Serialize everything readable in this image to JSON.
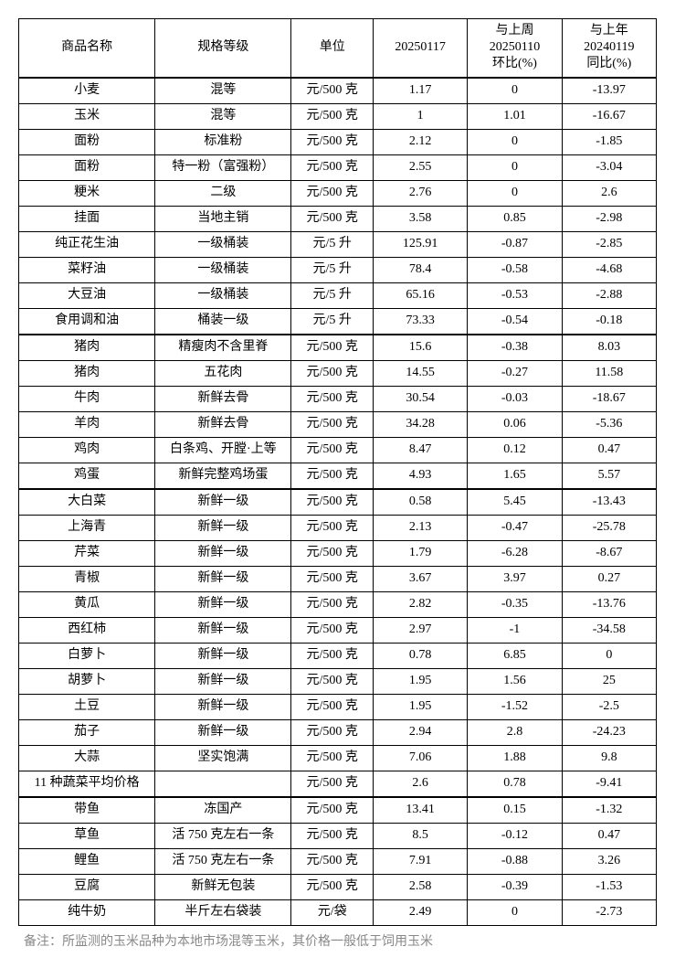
{
  "table": {
    "headers": {
      "name": "商品名称",
      "spec": "规格等级",
      "unit": "单位",
      "date": "20250117",
      "wow": "与上周\n20250110\n环比(%)",
      "yoy": "与上年\n20240119\n同比(%)"
    },
    "rows": [
      {
        "section": true,
        "name": "小麦",
        "spec": "混等",
        "unit": "元/500 克",
        "v1": "1.17",
        "v2": "0",
        "v3": "-13.97"
      },
      {
        "name": "玉米",
        "spec": "混等",
        "unit": "元/500 克",
        "v1": "1",
        "v2": "1.01",
        "v3": "-16.67"
      },
      {
        "name": "面粉",
        "spec": "标准粉",
        "unit": "元/500 克",
        "v1": "2.12",
        "v2": "0",
        "v3": "-1.85"
      },
      {
        "name": "面粉",
        "spec": "特一粉（富强粉）",
        "unit": "元/500 克",
        "v1": "2.55",
        "v2": "0",
        "v3": "-3.04"
      },
      {
        "name": "粳米",
        "spec": "二级",
        "unit": "元/500 克",
        "v1": "2.76",
        "v2": "0",
        "v3": "2.6"
      },
      {
        "name": "挂面",
        "spec": "当地主销",
        "unit": "元/500 克",
        "v1": "3.58",
        "v2": "0.85",
        "v3": "-2.98"
      },
      {
        "name": "纯正花生油",
        "spec": "一级桶装",
        "unit": "元/5 升",
        "v1": "125.91",
        "v2": "-0.87",
        "v3": "-2.85"
      },
      {
        "name": "菜籽油",
        "spec": "一级桶装",
        "unit": "元/5 升",
        "v1": "78.4",
        "v2": "-0.58",
        "v3": "-4.68"
      },
      {
        "name": "大豆油",
        "spec": "一级桶装",
        "unit": "元/5 升",
        "v1": "65.16",
        "v2": "-0.53",
        "v3": "-2.88"
      },
      {
        "name": "食用调和油",
        "spec": "桶装一级",
        "unit": "元/5 升",
        "v1": "73.33",
        "v2": "-0.54",
        "v3": "-0.18"
      },
      {
        "section": true,
        "name": "猪肉",
        "spec": "精瘦肉不含里脊",
        "unit": "元/500 克",
        "v1": "15.6",
        "v2": "-0.38",
        "v3": "8.03"
      },
      {
        "name": "猪肉",
        "spec": "五花肉",
        "unit": "元/500 克",
        "v1": "14.55",
        "v2": "-0.27",
        "v3": "11.58"
      },
      {
        "name": "牛肉",
        "spec": "新鲜去骨",
        "unit": "元/500 克",
        "v1": "30.54",
        "v2": "-0.03",
        "v3": "-18.67"
      },
      {
        "name": "羊肉",
        "spec": "新鲜去骨",
        "unit": "元/500 克",
        "v1": "34.28",
        "v2": "0.06",
        "v3": "-5.36"
      },
      {
        "name": "鸡肉",
        "spec": "白条鸡、开膛·上等",
        "unit": "元/500 克",
        "v1": "8.47",
        "v2": "0.12",
        "v3": "0.47"
      },
      {
        "name": "鸡蛋",
        "spec": "新鲜完整鸡场蛋",
        "unit": "元/500 克",
        "v1": "4.93",
        "v2": "1.65",
        "v3": "5.57"
      },
      {
        "section": true,
        "name": "大白菜",
        "spec": "新鲜一级",
        "unit": "元/500 克",
        "v1": "0.58",
        "v2": "5.45",
        "v3": "-13.43"
      },
      {
        "name": "上海青",
        "spec": "新鲜一级",
        "unit": "元/500 克",
        "v1": "2.13",
        "v2": "-0.47",
        "v3": "-25.78"
      },
      {
        "name": "芹菜",
        "spec": "新鲜一级",
        "unit": "元/500 克",
        "v1": "1.79",
        "v2": "-6.28",
        "v3": "-8.67"
      },
      {
        "name": "青椒",
        "spec": "新鲜一级",
        "unit": "元/500 克",
        "v1": "3.67",
        "v2": "3.97",
        "v3": "0.27"
      },
      {
        "name": "黄瓜",
        "spec": "新鲜一级",
        "unit": "元/500 克",
        "v1": "2.82",
        "v2": "-0.35",
        "v3": "-13.76"
      },
      {
        "name": "西红柿",
        "spec": "新鲜一级",
        "unit": "元/500 克",
        "v1": "2.97",
        "v2": "-1",
        "v3": "-34.58"
      },
      {
        "name": "白萝卜",
        "spec": "新鲜一级",
        "unit": "元/500 克",
        "v1": "0.78",
        "v2": "6.85",
        "v3": "0"
      },
      {
        "name": "胡萝卜",
        "spec": "新鲜一级",
        "unit": "元/500 克",
        "v1": "1.95",
        "v2": "1.56",
        "v3": "25"
      },
      {
        "name": "土豆",
        "spec": "新鲜一级",
        "unit": "元/500 克",
        "v1": "1.95",
        "v2": "-1.52",
        "v3": "-2.5"
      },
      {
        "name": "茄子",
        "spec": "新鲜一级",
        "unit": "元/500 克",
        "v1": "2.94",
        "v2": "2.8",
        "v3": "-24.23"
      },
      {
        "name": "大蒜",
        "spec": "坚实饱满",
        "unit": "元/500 克",
        "v1": "7.06",
        "v2": "1.88",
        "v3": "9.8"
      },
      {
        "name": "11 种蔬菜平均价格",
        "spec": "",
        "unit": "元/500 克",
        "v1": "2.6",
        "v2": "0.78",
        "v3": "-9.41"
      },
      {
        "section": true,
        "name": "带鱼",
        "spec": "冻国产",
        "unit": "元/500 克",
        "v1": "13.41",
        "v2": "0.15",
        "v3": "-1.32"
      },
      {
        "name": "草鱼",
        "spec": "活 750 克左右一条",
        "unit": "元/500 克",
        "v1": "8.5",
        "v2": "-0.12",
        "v3": "0.47"
      },
      {
        "name": "鲤鱼",
        "spec": "活 750 克左右一条",
        "unit": "元/500 克",
        "v1": "7.91",
        "v2": "-0.88",
        "v3": "3.26"
      },
      {
        "name": "豆腐",
        "spec": "新鲜无包装",
        "unit": "元/500 克",
        "v1": "2.58",
        "v2": "-0.39",
        "v3": "-1.53"
      },
      {
        "name": "纯牛奶",
        "spec": "半斤左右袋装",
        "unit": "元/袋",
        "v1": "2.49",
        "v2": "0",
        "v3": "-2.73"
      }
    ]
  },
  "footnote": "备注：所监测的玉米品种为本地市场混等玉米，其价格一般低于饲用玉米"
}
